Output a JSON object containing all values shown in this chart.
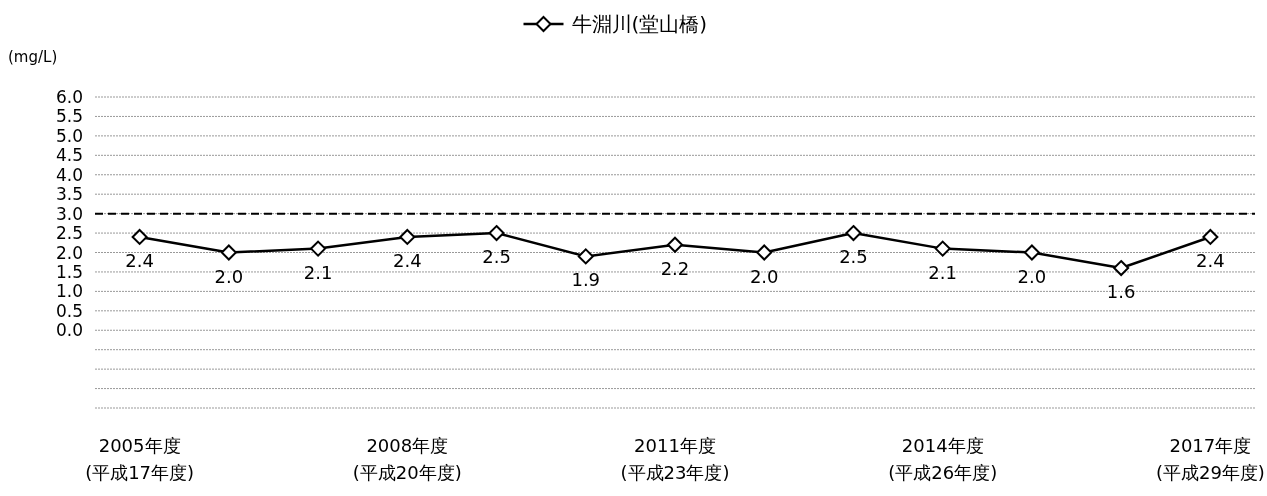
{
  "chart_data": {
    "type": "line",
    "categories": [
      "2005年度\n(平成17年度)",
      null,
      null,
      "2008年度\n(平成20年度)",
      null,
      null,
      "2011年度\n(平成23年度)",
      null,
      null,
      "2014年度\n(平成26年度)",
      null,
      null,
      "2017年度\n(平成29年度)"
    ],
    "series": [
      {
        "name": "牛淵川(堂山橋)",
        "color": "#000000",
        "values": [
          2.4,
          2.0,
          2.1,
          2.4,
          2.5,
          1.9,
          2.2,
          2.0,
          2.5,
          2.1,
          2.0,
          1.6,
          2.4
        ],
        "value_labels": [
          "2.4",
          "2.0",
          "2.1",
          "2.4",
          "2.5",
          "1.9",
          "2.2",
          "2.0",
          "2.5",
          "2.1",
          "2.0",
          "1.6",
          "2.4"
        ]
      }
    ],
    "ylabel": "(mg/L)",
    "ylim": [
      -2,
      6
    ],
    "yticks": [
      {
        "value": -2,
        "label": null
      },
      {
        "value": -1.5,
        "label": null
      },
      {
        "value": -1,
        "label": null
      },
      {
        "value": -0.5,
        "label": null
      },
      {
        "value": 0,
        "label": "0.0"
      },
      {
        "value": 0.5,
        "label": "0.5"
      },
      {
        "value": 1,
        "label": "1.0"
      },
      {
        "value": 1.5,
        "label": "1.5"
      },
      {
        "value": 2,
        "label": "2.0"
      },
      {
        "value": 2.5,
        "label": "2.5"
      },
      {
        "value": 3,
        "label": "3.0"
      },
      {
        "value": 3.5,
        "label": "3.5"
      },
      {
        "value": 4,
        "label": "4.0"
      },
      {
        "value": 4.5,
        "label": "4.5"
      },
      {
        "value": 5,
        "label": "5.0"
      },
      {
        "value": 5.5,
        "label": "5.5"
      },
      {
        "value": 6,
        "label": "6.0"
      }
    ],
    "ref_lines": [
      {
        "axis": "y",
        "value": 3,
        "color": "#000000",
        "line_style": "dashed"
      }
    ],
    "grid": "y",
    "legend": "top",
    "marker": "diamond",
    "line_style": "solid"
  }
}
